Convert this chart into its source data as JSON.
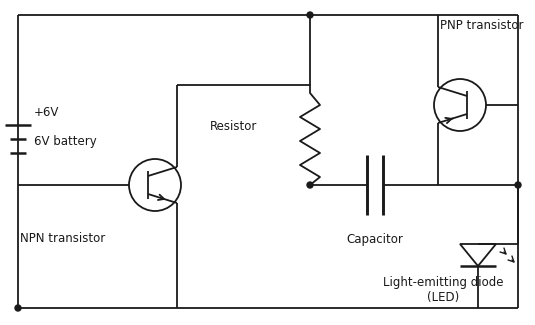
{
  "bg_color": "#ffffff",
  "line_color": "#1a1a1a",
  "text_color": "#1a1a1a",
  "font_family": "DejaVu Sans",
  "figsize": [
    5.35,
    3.25
  ],
  "dpi": 100,
  "labels": {
    "battery_plus": "+6V",
    "battery_name": "6V battery",
    "npn_name": "NPN transistor",
    "pnp_name": "PNP transistor",
    "resistor_name": "Resistor",
    "capacitor_name": "Capacitor",
    "led_name": "Light-emitting diode\n(LED)"
  }
}
